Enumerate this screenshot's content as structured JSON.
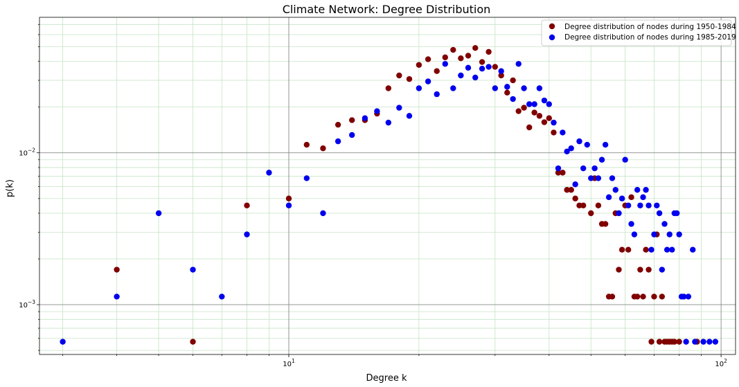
{
  "chart_data": {
    "type": "scatter",
    "title": "Climate Network: Degree Distribution",
    "xlabel": "Degree k",
    "ylabel": "p(k)",
    "xscale": "log",
    "yscale": "log",
    "xlim": [
      2.65,
      108
    ],
    "ylim": [
      0.00047,
      0.078
    ],
    "x_major_ticks": [
      {
        "value": 10,
        "label": "10^1"
      },
      {
        "value": 100,
        "label": "10^2"
      }
    ],
    "y_major_ticks": [
      {
        "value": 0.01,
        "label": "10^-2"
      },
      {
        "value": 0.001,
        "label": "10^-3"
      }
    ],
    "grid": "major gray, minor light green",
    "legend_position": "top-right",
    "series": [
      {
        "name": "Degree distribution of nodes during 1950-1984",
        "color": "#800000",
        "points": [
          [
            4,
            0.0017
          ],
          [
            6,
            0.00057
          ],
          [
            8,
            0.0045
          ],
          [
            10,
            0.005
          ],
          [
            11,
            0.0113
          ],
          [
            12,
            0.0107
          ],
          [
            13,
            0.0153
          ],
          [
            14,
            0.0164
          ],
          [
            15,
            0.0164
          ],
          [
            16,
            0.0181
          ],
          [
            17,
            0.0266
          ],
          [
            18,
            0.0323
          ],
          [
            19,
            0.0306
          ],
          [
            20,
            0.0379
          ],
          [
            21,
            0.0413
          ],
          [
            22,
            0.0345
          ],
          [
            23,
            0.0425
          ],
          [
            24,
            0.0476
          ],
          [
            25,
            0.0419
          ],
          [
            26,
            0.0436
          ],
          [
            27,
            0.049
          ],
          [
            28,
            0.0396
          ],
          [
            29,
            0.0462
          ],
          [
            30,
            0.0368
          ],
          [
            31,
            0.0323
          ],
          [
            32,
            0.0249
          ],
          [
            33,
            0.03
          ],
          [
            34,
            0.0188
          ],
          [
            35,
            0.0198
          ],
          [
            36,
            0.0147
          ],
          [
            37,
            0.0184
          ],
          [
            38,
            0.0175
          ],
          [
            39,
            0.0159
          ],
          [
            40,
            0.0169
          ],
          [
            41,
            0.0136
          ],
          [
            42,
            0.0074
          ],
          [
            43,
            0.0074
          ],
          [
            44,
            0.0057
          ],
          [
            45,
            0.0057
          ],
          [
            46,
            0.005
          ],
          [
            47,
            0.0045
          ],
          [
            48,
            0.0045
          ],
          [
            50,
            0.004
          ],
          [
            51,
            0.0068
          ],
          [
            52,
            0.0045
          ],
          [
            53,
            0.0034
          ],
          [
            54,
            0.0034
          ],
          [
            55,
            0.00113
          ],
          [
            56,
            0.00113
          ],
          [
            57,
            0.004
          ],
          [
            58,
            0.0017
          ],
          [
            59,
            0.0023
          ],
          [
            60,
            0.0045
          ],
          [
            61,
            0.0023
          ],
          [
            62,
            0.0051
          ],
          [
            63,
            0.00113
          ],
          [
            64,
            0.00113
          ],
          [
            65,
            0.0017
          ],
          [
            66,
            0.00113
          ],
          [
            67,
            0.0023
          ],
          [
            68,
            0.0017
          ],
          [
            69,
            0.00057
          ],
          [
            70,
            0.00113
          ],
          [
            71,
            0.0029
          ],
          [
            72,
            0.00057
          ],
          [
            73,
            0.00113
          ],
          [
            74,
            0.00057
          ],
          [
            75,
            0.00057
          ],
          [
            76,
            0.00057
          ],
          [
            77,
            0.00057
          ],
          [
            78,
            0.00057
          ],
          [
            80,
            0.00057
          ],
          [
            88,
            0.00057
          ]
        ]
      },
      {
        "name": "Degree distribution of nodes during 1985-2019",
        "color": "#0000ee",
        "points": [
          [
            3,
            0.00057
          ],
          [
            4,
            0.00113
          ],
          [
            5,
            0.004
          ],
          [
            6,
            0.0017
          ],
          [
            7,
            0.00113
          ],
          [
            8,
            0.0029
          ],
          [
            9,
            0.0074
          ],
          [
            10,
            0.0045
          ],
          [
            11,
            0.0068
          ],
          [
            12,
            0.004
          ],
          [
            13,
            0.0119
          ],
          [
            14,
            0.0131
          ],
          [
            15,
            0.0169
          ],
          [
            16,
            0.0188
          ],
          [
            17,
            0.0158
          ],
          [
            18,
            0.0198
          ],
          [
            19,
            0.0175
          ],
          [
            20,
            0.0266
          ],
          [
            21,
            0.0295
          ],
          [
            22,
            0.0243
          ],
          [
            23,
            0.0385
          ],
          [
            24,
            0.0266
          ],
          [
            25,
            0.0323
          ],
          [
            26,
            0.0363
          ],
          [
            27,
            0.0313
          ],
          [
            28,
            0.0358
          ],
          [
            29,
            0.0368
          ],
          [
            30,
            0.0266
          ],
          [
            31,
            0.0345
          ],
          [
            32,
            0.0272
          ],
          [
            33,
            0.0226
          ],
          [
            34,
            0.0385
          ],
          [
            35,
            0.0266
          ],
          [
            36,
            0.0209
          ],
          [
            37,
            0.0209
          ],
          [
            38,
            0.0266
          ],
          [
            39,
            0.0221
          ],
          [
            40,
            0.0209
          ],
          [
            41,
            0.0158
          ],
          [
            42,
            0.0079
          ],
          [
            43,
            0.0136
          ],
          [
            44,
            0.0102
          ],
          [
            45,
            0.0107
          ],
          [
            46,
            0.0062
          ],
          [
            47,
            0.0119
          ],
          [
            48,
            0.0079
          ],
          [
            49,
            0.0113
          ],
          [
            50,
            0.0068
          ],
          [
            51,
            0.0079
          ],
          [
            52,
            0.0068
          ],
          [
            53,
            0.009
          ],
          [
            54,
            0.0113
          ],
          [
            55,
            0.0051
          ],
          [
            56,
            0.0068
          ],
          [
            57,
            0.0057
          ],
          [
            58,
            0.004
          ],
          [
            59,
            0.005
          ],
          [
            60,
            0.009
          ],
          [
            61,
            0.0045
          ],
          [
            62,
            0.0034
          ],
          [
            63,
            0.0029
          ],
          [
            64,
            0.0057
          ],
          [
            65,
            0.0045
          ],
          [
            66,
            0.0051
          ],
          [
            67,
            0.0057
          ],
          [
            68,
            0.0045
          ],
          [
            69,
            0.0023
          ],
          [
            70,
            0.0029
          ],
          [
            71,
            0.0045
          ],
          [
            72,
            0.004
          ],
          [
            73,
            0.0017
          ],
          [
            74,
            0.0034
          ],
          [
            75,
            0.0023
          ],
          [
            76,
            0.0029
          ],
          [
            77,
            0.0023
          ],
          [
            78,
            0.004
          ],
          [
            79,
            0.004
          ],
          [
            80,
            0.0029
          ],
          [
            81,
            0.00113
          ],
          [
            82,
            0.00113
          ],
          [
            83,
            0.00057
          ],
          [
            84,
            0.00113
          ],
          [
            86,
            0.0023
          ],
          [
            87,
            0.00057
          ],
          [
            91,
            0.00057
          ],
          [
            94,
            0.00057
          ],
          [
            97,
            0.00057
          ]
        ]
      }
    ]
  }
}
